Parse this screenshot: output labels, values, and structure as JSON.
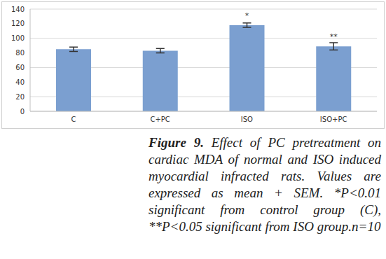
{
  "chart_data": {
    "type": "bar",
    "categories": [
      "C",
      "C+PC",
      "ISO",
      "ISO+PC"
    ],
    "values": [
      85,
      83,
      118,
      89
    ],
    "errors": [
      3,
      3,
      3,
      5
    ],
    "color": "#7b9fd0",
    "ylim": [
      0,
      140
    ],
    "yticks": [
      0,
      20,
      40,
      60,
      80,
      100,
      120,
      140
    ],
    "grid": true,
    "annotations": [
      {
        "category": "ISO",
        "text": "*"
      },
      {
        "category": "ISO+PC",
        "text": "**"
      }
    ],
    "figure_label": "Figure 9.",
    "caption": "Effect of PC pretreatment on cardiac MDA of normal and ISO induced myocardial infracted rats. Values are expressed as mean + SEM. *P<0.01 significant from control group (C), **P<0.05 significant from ISO group.n=10"
  }
}
